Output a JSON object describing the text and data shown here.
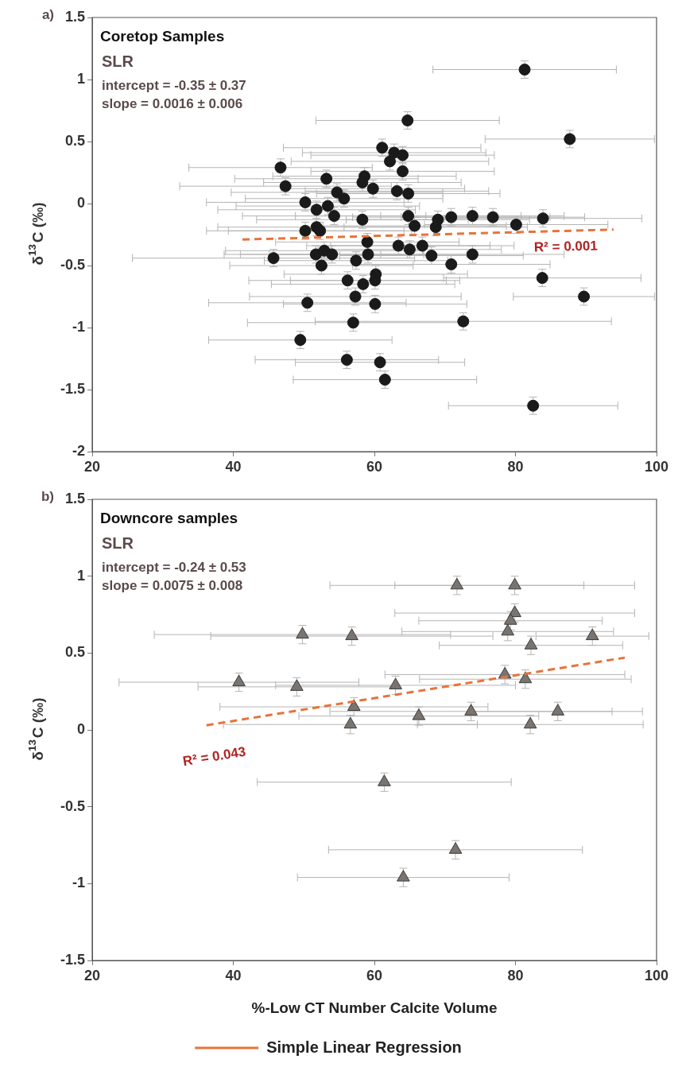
{
  "chart_data": [
    {
      "type": "scatter",
      "title": "Coretop Samples",
      "ylabel": "δ$^{13}$C (‰)",
      "xlim": [
        20,
        100
      ],
      "xticks": [
        20,
        40,
        60,
        80,
        100
      ],
      "ylim": [
        -2,
        1.5
      ],
      "yticks": [
        -2,
        -1.5,
        -1,
        -0.5,
        0,
        0.5,
        1,
        1.5
      ],
      "grid": false,
      "legend": false,
      "marker": "circle",
      "annotations": [
        "a)",
        "SLR",
        "intercept = -0.35 ± 0.37",
        "slope = 0.0016 ± 0.006",
        "R² = 0.001"
      ],
      "series": [
        {
          "color": "#1a1a1a",
          "x": [
            81.3,
            64.7,
            87.7,
            61.1,
            62.8,
            64.0,
            62.2,
            64.0,
            46.7,
            47.4,
            53.2,
            58.6,
            58.3,
            59.8,
            54.7,
            55.7,
            63.2,
            64.8,
            50.2,
            51.8,
            53.4,
            54.3,
            58.3,
            64.8,
            65.7,
            69.0,
            68.7,
            70.9,
            73.9,
            76.8,
            80.1,
            83.9,
            50.2,
            51.8,
            52.3,
            59.0,
            63.4,
            65.0,
            66.8,
            68.1,
            73.9,
            70.9,
            45.7,
            51.7,
            52.9,
            54.0,
            52.5,
            57.4,
            59.1,
            60.2,
            60.1,
            56.2,
            58.4,
            83.8,
            57.3,
            50.5,
            60.1,
            89.7,
            57.0,
            72.6,
            49.5,
            56.1,
            60.8,
            61.5,
            82.5
          ],
          "values": [
            1.08,
            0.67,
            0.52,
            0.45,
            0.41,
            0.39,
            0.34,
            0.26,
            0.29,
            0.14,
            0.2,
            0.22,
            0.17,
            0.12,
            0.09,
            0.04,
            0.1,
            0.08,
            0.01,
            -0.05,
            -0.02,
            -0.1,
            -0.13,
            -0.1,
            -0.18,
            -0.13,
            -0.19,
            -0.11,
            -0.1,
            -0.11,
            -0.17,
            -0.12,
            -0.22,
            -0.19,
            -0.22,
            -0.31,
            -0.34,
            -0.37,
            -0.34,
            -0.42,
            -0.41,
            -0.49,
            -0.44,
            -0.41,
            -0.38,
            -0.41,
            -0.5,
            -0.46,
            -0.41,
            -0.57,
            -0.62,
            -0.62,
            -0.65,
            -0.6,
            -0.75,
            -0.8,
            -0.81,
            -0.75,
            -0.96,
            -0.95,
            -1.1,
            -1.26,
            -1.28,
            -1.42,
            -1.63
          ],
          "errors": [
            0.07,
            0.07,
            0.07,
            0.07,
            0.07,
            0.07,
            0.07,
            0.07,
            0.07,
            0.07,
            0.07,
            0.07,
            0.07,
            0.07,
            0.07,
            0.07,
            0.07,
            0.07,
            0.07,
            0.07,
            0.07,
            0.07,
            0.07,
            0.07,
            0.07,
            0.07,
            0.07,
            0.07,
            0.07,
            0.07,
            0.07,
            0.07,
            0.07,
            0.07,
            0.07,
            0.07,
            0.07,
            0.07,
            0.07,
            0.07,
            0.07,
            0.07,
            0.07,
            0.07,
            0.07,
            0.07,
            0.07,
            0.07,
            0.07,
            0.07,
            0.07,
            0.07,
            0.07,
            0.07,
            0.07,
            0.07,
            0.07,
            0.07,
            0.07,
            0.07,
            0.07,
            0.07,
            0.07,
            0.07,
            0.07
          ],
          "xerrors": [
            13,
            13,
            12,
            14,
            13,
            13,
            14,
            13,
            13,
            15,
            13,
            13,
            14,
            13,
            15,
            14,
            13,
            13,
            14,
            14,
            13,
            13,
            15,
            16,
            13,
            13,
            13,
            14,
            13,
            13,
            13,
            14,
            14,
            14,
            13,
            13,
            13,
            13,
            13,
            13,
            13,
            14,
            20,
            13,
            14,
            13,
            13,
            13,
            14,
            13,
            12,
            14,
            13,
            14,
            15,
            14,
            13,
            10,
            15,
            21,
            13,
            13,
            12,
            13,
            12
          ]
        },
        {
          "type": "line",
          "color": "#e8733a",
          "line_style": "dashed",
          "marker": "none",
          "x": [
            41.3,
            93.9
          ],
          "values": [
            -0.29,
            -0.21
          ]
        }
      ]
    },
    {
      "type": "scatter",
      "title": "Downcore samples",
      "ylabel": "δ$^{13}$C (‰)",
      "xlabel": "%-Low CT Number Calcite Volume",
      "xlim": [
        20,
        100
      ],
      "xticks": [
        20,
        40,
        60,
        80,
        100
      ],
      "ylim": [
        -1.5,
        1.5
      ],
      "yticks": [
        -1.5,
        -1,
        -0.5,
        0,
        0.5,
        1,
        1.5
      ],
      "grid": false,
      "legend": "bottom",
      "marker": "triangle",
      "annotations": [
        "b)",
        "SLR",
        "intercept = -0.24 ± 0.53",
        "slope = 0.0075 ± 0.008",
        "R² = 0.043"
      ],
      "series": [
        {
          "color": "#7a7470",
          "x": [
            71.7,
            79.9,
            79.9,
            79.3,
            78.9,
            49.8,
            56.8,
            90.9,
            82.2,
            78.5,
            81.4,
            40.8,
            49.0,
            63.0,
            57.1,
            66.3,
            73.7,
            86.0,
            56.6,
            82.1,
            61.4,
            71.5,
            64.1
          ],
          "values": [
            0.94,
            0.94,
            0.76,
            0.71,
            0.64,
            0.62,
            0.61,
            0.61,
            0.55,
            0.36,
            0.33,
            0.31,
            0.28,
            0.29,
            0.15,
            0.09,
            0.12,
            0.12,
            0.035,
            0.035,
            -0.34,
            -0.78,
            -0.96
          ],
          "errors": [
            0.06,
            0.06,
            0.06,
            0.06,
            0.06,
            0.06,
            0.06,
            0.06,
            0.06,
            0.06,
            0.06,
            0.06,
            0.06,
            0.06,
            0.06,
            0.06,
            0.06,
            0.06,
            0.06,
            0.06,
            0.06,
            0.06,
            0.06
          ],
          "xerrors": [
            18,
            17,
            17,
            13,
            15,
            21,
            20,
            8,
            13,
            17,
            15,
            17,
            14,
            17,
            19,
            17,
            20,
            12,
            18,
            16,
            18,
            18,
            15
          ]
        },
        {
          "type": "line",
          "name": "Simple Linear Regression",
          "color": "#e8733a",
          "line_style": "dashed",
          "marker": "none",
          "x": [
            36.2,
            95.5
          ],
          "values": [
            0.03,
            0.47
          ]
        }
      ]
    }
  ]
}
